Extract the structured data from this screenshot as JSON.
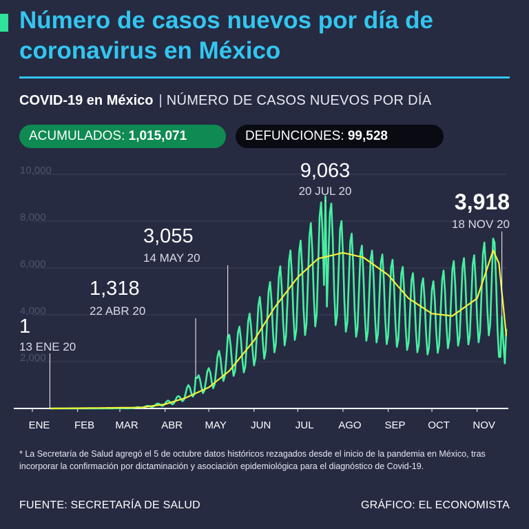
{
  "title": "Número de casos nuevos por día de coronavirus en México",
  "subtitle": {
    "bold": "COVID-19 en México",
    "separator": "|",
    "light": "NÚMERO DE CASOS NUEVOS POR DÍA"
  },
  "stats": {
    "accumulated_label": "ACUMULADOS:",
    "accumulated_value": "1,015,071",
    "deaths_label": "DEFUNCIONES:",
    "deaths_value": "99,528"
  },
  "colors": {
    "background": "#262b42",
    "title": "#33c6f0",
    "series": "#46f0a0",
    "average": "#f2f23a",
    "grid": "#3c4258",
    "axis": "#ffffff"
  },
  "chart_data": {
    "type": "line",
    "x_axis": {
      "categories": [
        "ENE",
        "FEB",
        "MAR",
        "ABR",
        "MAY",
        "JUN",
        "JUL",
        "AGO",
        "SEP",
        "OCT",
        "NOV"
      ],
      "start_date": "2020-01-01",
      "end_date": "2020-11-21"
    },
    "y_axis": {
      "ticks": [
        "2,000",
        "4,000",
        "6,000",
        "8,000",
        "10,000"
      ],
      "ylim": [
        0,
        10000
      ],
      "grid": true
    },
    "series": [
      {
        "role": "daily",
        "style": "line",
        "points": [
          [
            "2020-01-13",
            1
          ],
          [
            "2020-02-15",
            1
          ],
          [
            "2020-03-01",
            12
          ],
          [
            "2020-03-10",
            30
          ],
          [
            "2020-03-20",
            110
          ],
          [
            "2020-04-01",
            280
          ],
          [
            "2020-04-10",
            520
          ],
          [
            "2020-04-22",
            1318
          ],
          [
            "2020-05-01",
            1700
          ],
          [
            "2020-05-14",
            3055
          ],
          [
            "2020-05-25",
            3600
          ],
          [
            "2020-06-05",
            4700
          ],
          [
            "2020-06-15",
            5600
          ],
          [
            "2020-06-25",
            6600
          ],
          [
            "2020-07-05",
            7200
          ],
          [
            "2020-07-20",
            9063
          ],
          [
            "2020-08-01",
            7800
          ],
          [
            "2020-08-15",
            6800
          ],
          [
            "2020-09-01",
            6400
          ],
          [
            "2020-09-15",
            5800
          ],
          [
            "2020-10-01",
            5300
          ],
          [
            "2020-10-15",
            6200
          ],
          [
            "2020-11-01",
            6500
          ],
          [
            "2020-11-12",
            7600
          ],
          [
            "2020-11-18",
            3918
          ],
          [
            "2020-11-20",
            1900
          ],
          [
            "2020-11-21",
            4000
          ]
        ]
      },
      {
        "role": "moving-average",
        "style": "line",
        "points": [
          [
            "2020-01-13",
            0
          ],
          [
            "2020-03-15",
            40
          ],
          [
            "2020-04-01",
            180
          ],
          [
            "2020-04-15",
            450
          ],
          [
            "2020-05-01",
            900
          ],
          [
            "2020-05-15",
            1600
          ],
          [
            "2020-06-01",
            2900
          ],
          [
            "2020-06-15",
            4300
          ],
          [
            "2020-07-01",
            5600
          ],
          [
            "2020-07-15",
            6400
          ],
          [
            "2020-08-01",
            6650
          ],
          [
            "2020-08-15",
            6450
          ],
          [
            "2020-09-01",
            5700
          ],
          [
            "2020-09-15",
            4700
          ],
          [
            "2020-10-01",
            4050
          ],
          [
            "2020-10-15",
            3950
          ],
          [
            "2020-11-01",
            4700
          ],
          [
            "2020-11-12",
            6750
          ],
          [
            "2020-11-16",
            6200
          ],
          [
            "2020-11-21",
            3100
          ]
        ]
      }
    ],
    "annotations": [
      {
        "date": "2020-01-13",
        "value": "1",
        "date_label": "13 ENE 20",
        "highlight": false
      },
      {
        "date": "2020-04-22",
        "value": "1,318",
        "date_label": "22 ABR 20",
        "highlight": false
      },
      {
        "date": "2020-05-14",
        "value": "3,055",
        "date_label": "14 MAY 20",
        "highlight": false
      },
      {
        "date": "2020-07-20",
        "value": "9,063",
        "date_label": "20 JUL 20",
        "highlight": false
      },
      {
        "date": "2020-11-18",
        "value": "3,918",
        "date_label": "18 NOV 20",
        "highlight": true
      }
    ]
  },
  "note": "* La Secretaría de Salud agregó el 5 de octubre datos históricos rezagados desde el inicio de la pandemia en México, tras incorporar la confirmación por dictaminación y asociación epidemiológica para el diagnóstico de Covid-19.",
  "footer": {
    "source": "FUENTE: SECRETARÍA DE SALUD",
    "credit": "GRÁFICO: EL ECONOMISTA"
  }
}
